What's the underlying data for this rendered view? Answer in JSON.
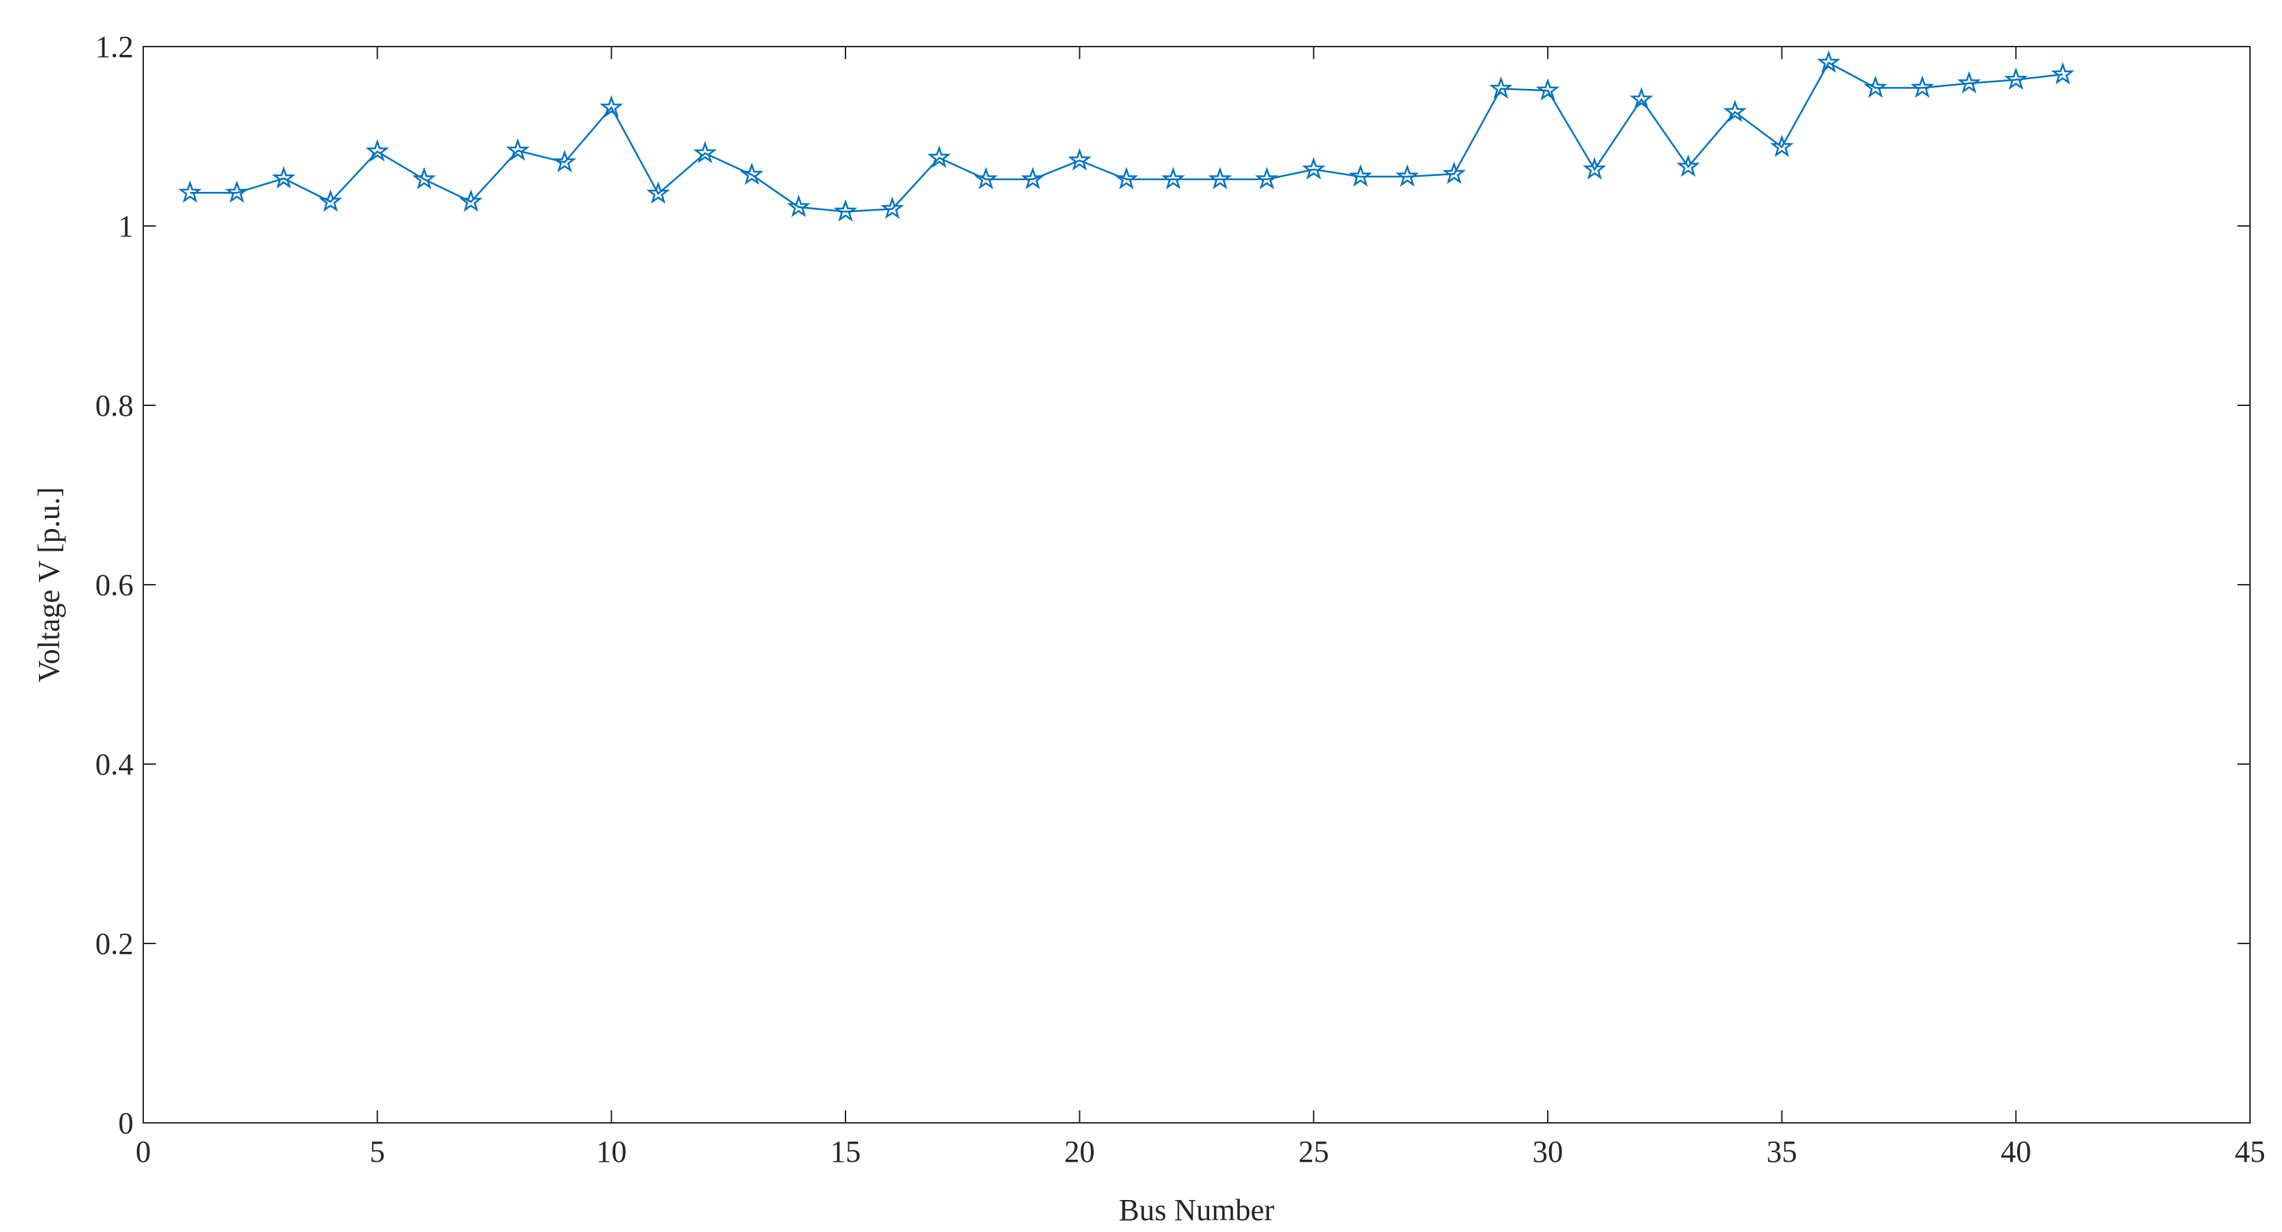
{
  "chart_data": {
    "type": "line",
    "x_label": "Bus Number",
    "y_label": "Voltage V [p.u.]",
    "x": [
      1,
      2,
      3,
      4,
      5,
      6,
      7,
      8,
      9,
      10,
      11,
      12,
      13,
      14,
      15,
      16,
      17,
      18,
      19,
      20,
      21,
      22,
      23,
      24,
      25,
      26,
      27,
      28,
      29,
      30,
      31,
      32,
      33,
      34,
      35,
      36,
      37,
      38,
      39,
      40,
      41
    ],
    "series": [
      {
        "color": "#0072bd",
        "marker": "star",
        "values": [
          1.037,
          1.037,
          1.053,
          1.027,
          1.083,
          1.052,
          1.027,
          1.084,
          1.071,
          1.132,
          1.036,
          1.081,
          1.057,
          1.021,
          1.016,
          1.019,
          1.076,
          1.052,
          1.052,
          1.073,
          1.052,
          1.052,
          1.052,
          1.052,
          1.063,
          1.055,
          1.055,
          1.058,
          1.153,
          1.151,
          1.063,
          1.141,
          1.066,
          1.127,
          1.088,
          1.182,
          1.154,
          1.154,
          1.159,
          1.163,
          1.169
        ]
      }
    ],
    "xlim": [
      0,
      45
    ],
    "xticks": [
      0,
      5,
      10,
      15,
      20,
      25,
      30,
      35,
      40,
      45
    ],
    "ylim": [
      0,
      1.2
    ],
    "yticks": [
      0,
      0.2,
      0.4,
      0.6,
      0.8,
      1,
      1.2
    ],
    "grid": false
  }
}
